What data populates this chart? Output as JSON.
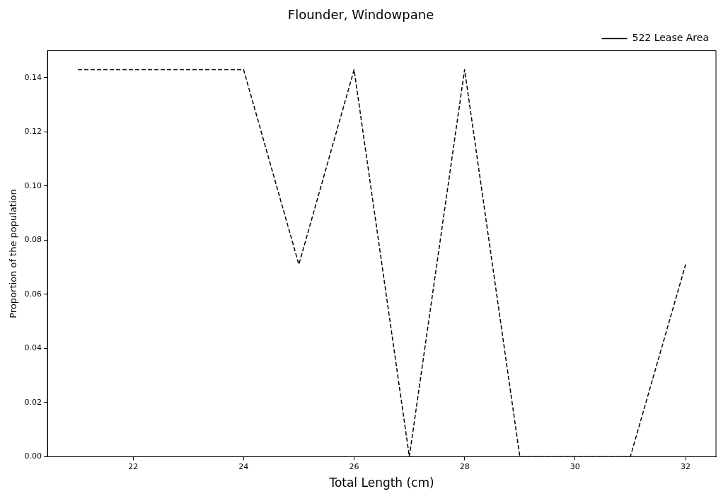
{
  "chart_data": {
    "type": "line",
    "title": "Flounder, Windowpane",
    "xlabel": "Total Length (cm)",
    "ylabel": "Proportion of the population",
    "x": [
      21,
      22,
      23,
      24,
      25,
      26,
      27,
      28,
      29,
      30,
      31,
      32
    ],
    "series": [
      {
        "name": "522 Lease Area",
        "color": "#000000",
        "values": [
          0.143,
          0.143,
          0.143,
          0.143,
          0.071,
          0.143,
          0,
          0.143,
          0,
          0,
          0,
          0.071
        ]
      }
    ],
    "xlim": [
      20.45,
      32.55
    ],
    "xticks": [
      22,
      24,
      26,
      28,
      30,
      32
    ],
    "ylim": [
      0,
      0.15
    ],
    "yticks": [
      {
        "value": 0,
        "label": "0.00"
      },
      {
        "value": 0.02,
        "label": "0.02"
      },
      {
        "value": 0.04,
        "label": "0.04"
      },
      {
        "value": 0.06,
        "label": "0.06"
      },
      {
        "value": 0.08,
        "label": "0.08"
      },
      {
        "value": 0.1,
        "label": "0.10"
      },
      {
        "value": 0.12,
        "label": "0.12"
      },
      {
        "value": 0.14,
        "label": "0.14"
      }
    ],
    "grid": false,
    "legend": "top right",
    "marker": "none",
    "line_style": "dashed"
  }
}
